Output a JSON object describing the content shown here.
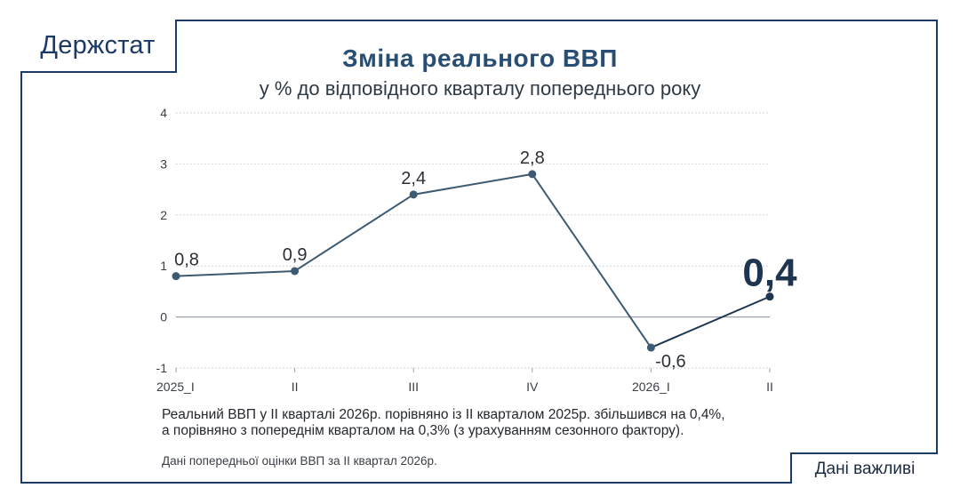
{
  "brand": "Держстат",
  "badge": "Дані важливі",
  "notes": {
    "line1": "Реальний ВВП у II кварталі 2026р. порівняно із II кварталом 2025р. збільшився на 0,4%,",
    "line2": "а порівняно з попереднім кварталом на 0,3% (з урахуванням сезонного фактору).",
    "source": "Дані попередньої оцінки ВВП за II квартал 2026р."
  },
  "colors": {
    "frame": "#1c3a66",
    "title": "#284f73",
    "line": "#3d5a73",
    "line_last": "#1e3552",
    "grid": "#bfc5cc"
  },
  "chart_data": {
    "type": "line",
    "title": "Зміна реального ВВП",
    "subtitle": "у % до відповідного кварталу попереднього року",
    "xlabel": "",
    "ylabel": "",
    "categories": [
      "2025_I",
      "II",
      "III",
      "IV",
      "2026_I",
      "II"
    ],
    "values": [
      0.8,
      0.9,
      2.4,
      2.8,
      -0.6,
      0.4
    ],
    "data_labels": [
      "0,8",
      "0,9",
      "2,4",
      "2,8",
      "-0,6",
      "0,4"
    ],
    "y_ticks": [
      -1,
      0,
      1,
      2,
      3,
      4
    ],
    "y_tick_labels": [
      "-1",
      "0",
      "1",
      "2",
      "3",
      "4"
    ],
    "ylim": [
      -1,
      4
    ],
    "grid": true,
    "legend": "none"
  }
}
